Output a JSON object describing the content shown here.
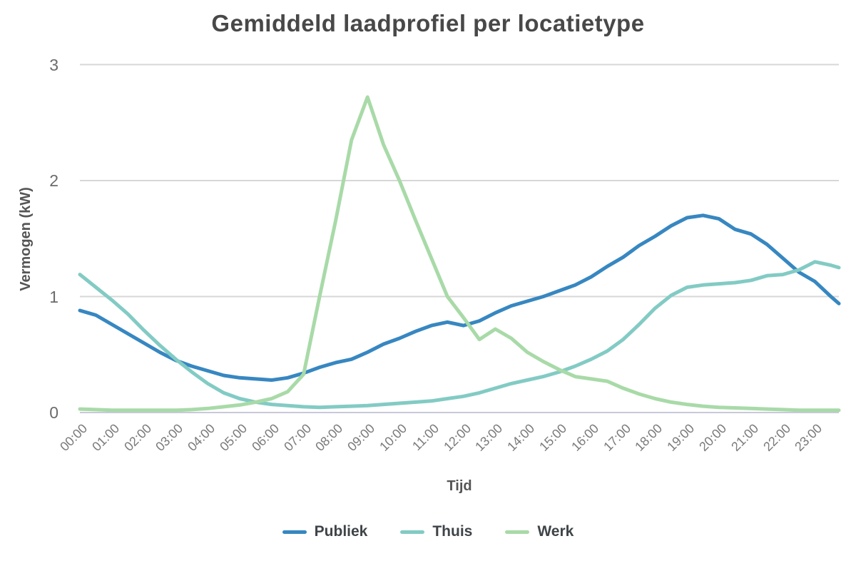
{
  "chart": {
    "title": "Gemiddeld laadprofiel per locatietype",
    "x_axis_label": "Tijd",
    "y_axis_label": "Vermogen (kW)"
  },
  "colors": {
    "grid": "#d7d7d7",
    "baseline": "#c9c9da",
    "title_text": "#484848",
    "tick_text": "#6b6b6b"
  },
  "chart_data": {
    "type": "line",
    "title": "Gemiddeld laadprofiel per locatietype",
    "xlabel": "Tijd",
    "ylabel": "Vermogen (kW)",
    "ylim": [
      0,
      3
    ],
    "y_ticks": [
      0,
      1,
      2,
      3
    ],
    "grid": "horizontal",
    "legend_position": "bottom",
    "x_tick_labels": [
      "00:00",
      "01:00",
      "02:00",
      "03:00",
      "04:00",
      "05:00",
      "06:00",
      "07:00",
      "08:00",
      "09:00",
      "10:00",
      "11:00",
      "12:00",
      "13:00",
      "14:00",
      "15:00",
      "16:00",
      "17:00",
      "18:00",
      "19:00",
      "20:00",
      "21:00",
      "22:00",
      "23:00"
    ],
    "xlim_hours": [
      0,
      23.75
    ],
    "x_hours": [
      0,
      0.5,
      1,
      1.5,
      2,
      2.5,
      3,
      3.5,
      4,
      4.5,
      5,
      5.5,
      6,
      6.5,
      7,
      7.5,
      8,
      8.5,
      9,
      9.5,
      10,
      10.5,
      11,
      11.5,
      12,
      12.5,
      13,
      13.5,
      14,
      14.5,
      15,
      15.5,
      16,
      16.5,
      17,
      17.5,
      18,
      18.5,
      19,
      19.5,
      20,
      20.5,
      21,
      21.5,
      22,
      22.5,
      23,
      23.5,
      23.75
    ],
    "series": [
      {
        "name": "Publiek",
        "color": "#3787c1",
        "values": [
          0.88,
          0.84,
          0.76,
          0.68,
          0.6,
          0.52,
          0.45,
          0.4,
          0.36,
          0.32,
          0.3,
          0.29,
          0.28,
          0.3,
          0.34,
          0.39,
          0.43,
          0.46,
          0.52,
          0.59,
          0.64,
          0.7,
          0.75,
          0.78,
          0.75,
          0.79,
          0.86,
          0.92,
          0.96,
          1.0,
          1.05,
          1.1,
          1.17,
          1.26,
          1.34,
          1.44,
          1.52,
          1.61,
          1.68,
          1.7,
          1.67,
          1.58,
          1.54,
          1.45,
          1.33,
          1.21,
          1.13,
          1.0,
          0.94
        ]
      },
      {
        "name": "Thuis",
        "color": "#82cbc4",
        "values": [
          1.19,
          1.08,
          0.97,
          0.85,
          0.71,
          0.58,
          0.46,
          0.35,
          0.25,
          0.17,
          0.12,
          0.09,
          0.07,
          0.06,
          0.05,
          0.045,
          0.05,
          0.055,
          0.06,
          0.07,
          0.08,
          0.09,
          0.1,
          0.12,
          0.14,
          0.17,
          0.21,
          0.25,
          0.28,
          0.31,
          0.35,
          0.4,
          0.46,
          0.53,
          0.63,
          0.76,
          0.9,
          1.01,
          1.08,
          1.1,
          1.11,
          1.12,
          1.14,
          1.18,
          1.19,
          1.23,
          1.3,
          1.27,
          1.25
        ]
      },
      {
        "name": "Werk",
        "color": "#a8daa8",
        "values": [
          0.03,
          0.025,
          0.02,
          0.02,
          0.02,
          0.02,
          0.02,
          0.025,
          0.035,
          0.05,
          0.065,
          0.09,
          0.12,
          0.18,
          0.33,
          1.0,
          1.65,
          2.35,
          2.72,
          2.31,
          2.0,
          1.66,
          1.33,
          1.0,
          0.82,
          0.63,
          0.72,
          0.64,
          0.52,
          0.44,
          0.37,
          0.31,
          0.29,
          0.27,
          0.21,
          0.16,
          0.12,
          0.09,
          0.07,
          0.055,
          0.045,
          0.04,
          0.035,
          0.03,
          0.025,
          0.02,
          0.02,
          0.02,
          0.02
        ]
      }
    ]
  }
}
